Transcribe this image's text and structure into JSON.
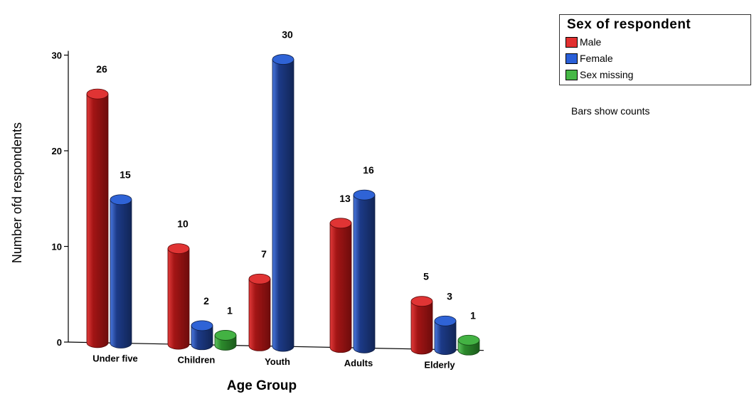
{
  "chart_data": {
    "type": "bar",
    "categories": [
      "Under five",
      "Children",
      "Youth",
      "Adults",
      "Elderly"
    ],
    "series": [
      {
        "name": "Male",
        "values": [
          26,
          10,
          7,
          13,
          5
        ],
        "labels": [
          "26",
          "10",
          "7",
          "13",
          "5"
        ],
        "color": "#d42020"
      },
      {
        "name": "Female",
        "values": [
          15,
          2,
          30,
          16,
          3
        ],
        "labels": [
          "15",
          "2",
          "30",
          "16",
          "3"
        ],
        "color": "#2050c0"
      },
      {
        "name": "Sex missing",
        "values": [
          null,
          1,
          null,
          null,
          1
        ],
        "labels": [
          "",
          "1",
          "",
          "",
          "1"
        ],
        "color": "#3aa83a"
      }
    ],
    "xlabel": "Age Group",
    "ylabel": "Number ofd respondents",
    "ylim": [
      0,
      30
    ],
    "yticks": [
      0,
      10,
      20,
      30
    ],
    "ytick_labels": [
      "0",
      "10",
      "20",
      "30"
    ],
    "legend": {
      "title": "Sex of respondent",
      "placement": "top-right"
    },
    "note": "Bars show counts",
    "grid": false
  }
}
